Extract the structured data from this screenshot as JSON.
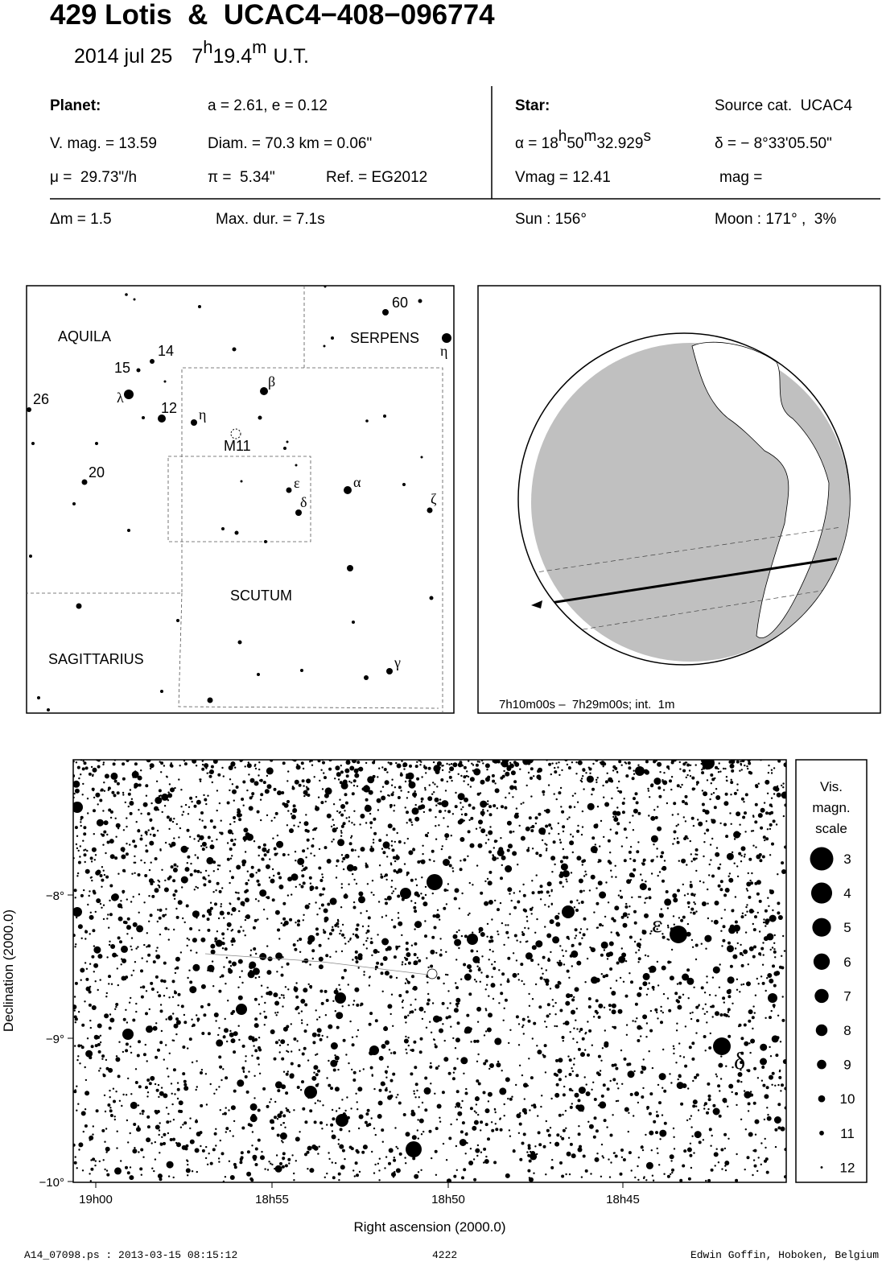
{
  "header": {
    "title": "429 Lotis  &  UCAC4−408−096774",
    "date": "2014 jul 25",
    "time": {
      "hours": "7",
      "h": "h",
      "minutes": "19.4",
      "m": "m",
      "ut": "U.T."
    }
  },
  "planet": {
    "label": "Planet:",
    "orbit": "a = 2.61, e = 0.12",
    "vmag": "V. mag. = 13.59",
    "diam": "Diam. = 70.3 km = 0.06\"",
    "mu": "μ =  29.73\"/h",
    "pi": "π =  5.34\"",
    "ref": "Ref. = EG2012"
  },
  "star": {
    "label": "Star:",
    "source": "Source cat.  UCAC4",
    "ra": {
      "prefix": "α = 18",
      "h": "h",
      "min": "50",
      "m": "m",
      "sec": "32.929",
      "s": "s"
    },
    "dec": "δ = − 8°33'05.50\"",
    "vmag": "Vmag = 12.41",
    "mag": "mag ="
  },
  "event": {
    "dm": "Δm = 1.5",
    "maxdur": "Max. dur. = 7.1s",
    "sun": "Sun : 156°",
    "moon": "Moon : 171° ,  3%"
  },
  "finder": {
    "constellations": [
      "AQUILA",
      "SERPENS",
      "SCUTUM",
      "SAGITTARIUS"
    ],
    "labels": [
      "60",
      "η",
      "14",
      "15",
      "26",
      "λ",
      "12",
      "η",
      "β",
      "M11",
      "20",
      "ε",
      "δ",
      "α",
      "ζ",
      "γ"
    ]
  },
  "globe": {
    "caption": "7h10m00s –  7h29m00s; int.  1m"
  },
  "star_field": {
    "y_label": "Declination (2000.0)",
    "x_label": "Right ascension (2000.0)",
    "y_ticks": [
      "−8°",
      "−9°",
      "−10°"
    ],
    "x_ticks": [
      "19h00",
      "18h55",
      "18h50",
      "18h45"
    ],
    "star_labels": [
      "ε",
      "δ"
    ],
    "scale_title": [
      "Vis.",
      "magn.",
      "scale"
    ],
    "magnitudes": [
      3,
      4,
      5,
      6,
      7,
      8,
      9,
      10,
      11,
      12
    ]
  },
  "footer": {
    "file": "A14_07098.ps : 2013-03-15 08:15:12",
    "number": "4222",
    "author": "Edwin Goffin, Hoboken, Belgium"
  }
}
